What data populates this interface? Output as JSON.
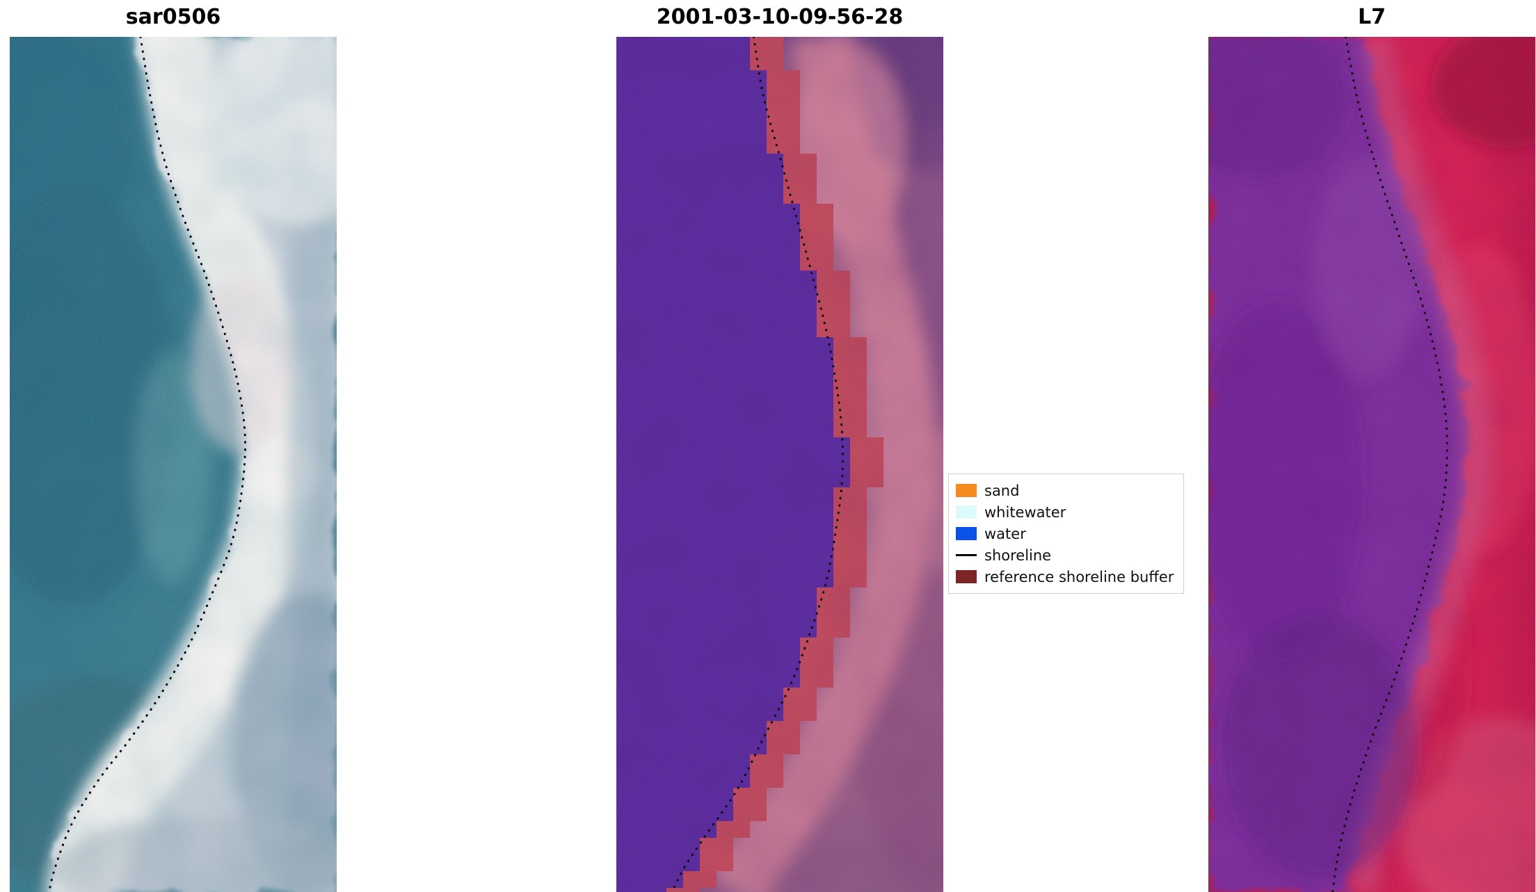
{
  "figure": {
    "background": "#ffffff"
  },
  "legend": {
    "border_color": "#cfcfcf",
    "items": [
      {
        "label": "sand",
        "swatch": "rect",
        "color": "#f68a1f"
      },
      {
        "label": "whitewater",
        "swatch": "rect",
        "color": "#dcfafc"
      },
      {
        "label": "water",
        "swatch": "rect",
        "color": "#0b53e8"
      },
      {
        "label": "shoreline",
        "swatch": "line",
        "color": "#000000"
      },
      {
        "label": "reference shoreline buffer",
        "swatch": "rect",
        "color": "#7e2525"
      }
    ]
  },
  "chart_data": {
    "type": "heatmap",
    "subtype": "satellite_image_panels",
    "title": "",
    "legend_entries": [
      "sand",
      "whitewater",
      "water",
      "shoreline",
      "reference shoreline buffer"
    ],
    "shoreline_style": {
      "color": "#0a0a0a",
      "style": "dotted"
    },
    "panels": [
      {
        "title": "sar0506",
        "colors": {
          "water": "#35718a",
          "outer": "#ccd3dc",
          "beach": "#f8f5f3"
        },
        "shoreline": [
          [
            0.4,
            0.0
          ],
          [
            0.43,
            0.07
          ],
          [
            0.47,
            0.14
          ],
          [
            0.53,
            0.21
          ],
          [
            0.6,
            0.28
          ],
          [
            0.66,
            0.35
          ],
          [
            0.7,
            0.41
          ],
          [
            0.72,
            0.47
          ],
          [
            0.71,
            0.53
          ],
          [
            0.68,
            0.59
          ],
          [
            0.62,
            0.65
          ],
          [
            0.55,
            0.71
          ],
          [
            0.46,
            0.77
          ],
          [
            0.37,
            0.82
          ],
          [
            0.27,
            0.87
          ],
          [
            0.19,
            0.92
          ],
          [
            0.14,
            0.97
          ],
          [
            0.12,
            1.0
          ]
        ]
      },
      {
        "title": "2001-03-10-09-56-28",
        "colors": {
          "water": "#5a2b9e",
          "buffer": "#c04a5c",
          "pink": "#cf7f97",
          "land": "#a2648a"
        },
        "shoreline": [
          [
            0.42,
            0.0
          ],
          [
            0.45,
            0.07
          ],
          [
            0.5,
            0.14
          ],
          [
            0.55,
            0.21
          ],
          [
            0.6,
            0.28
          ],
          [
            0.64,
            0.34
          ],
          [
            0.67,
            0.4
          ],
          [
            0.69,
            0.46
          ],
          [
            0.69,
            0.52
          ],
          [
            0.67,
            0.58
          ],
          [
            0.64,
            0.64
          ],
          [
            0.59,
            0.7
          ],
          [
            0.53,
            0.76
          ],
          [
            0.45,
            0.82
          ],
          [
            0.37,
            0.88
          ],
          [
            0.28,
            0.93
          ],
          [
            0.21,
            0.97
          ],
          [
            0.17,
            1.0
          ]
        ]
      },
      {
        "title": "L7",
        "colors": {
          "water": "#7c2d9d",
          "red": "#d41f4f",
          "pink": "#cf5e8e"
        },
        "shoreline": [
          [
            0.42,
            0.0
          ],
          [
            0.46,
            0.08
          ],
          [
            0.52,
            0.16
          ],
          [
            0.59,
            0.24
          ],
          [
            0.66,
            0.32
          ],
          [
            0.71,
            0.4
          ],
          [
            0.73,
            0.47
          ],
          [
            0.72,
            0.54
          ],
          [
            0.68,
            0.61
          ],
          [
            0.63,
            0.68
          ],
          [
            0.57,
            0.75
          ],
          [
            0.5,
            0.82
          ],
          [
            0.44,
            0.89
          ],
          [
            0.4,
            0.95
          ],
          [
            0.38,
            1.0
          ]
        ]
      }
    ]
  }
}
